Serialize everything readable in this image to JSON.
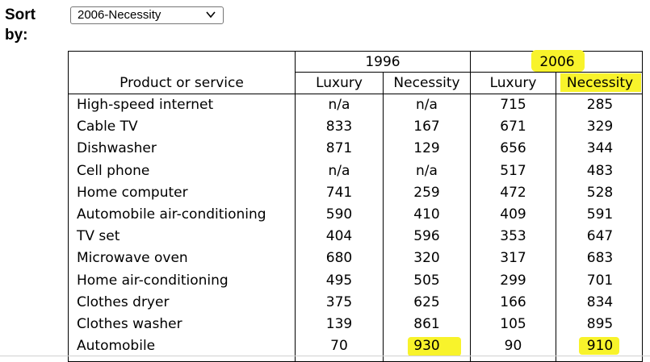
{
  "sort": {
    "label": "Sort by:",
    "selected": "2006-Necessity"
  },
  "table": {
    "years": [
      "1996",
      "2006"
    ],
    "headers": [
      "Product or service",
      "Luxury",
      "Necessity",
      "Luxury",
      "Necessity"
    ],
    "rows": [
      {
        "product": "High-speed internet",
        "lux1996": "n/a",
        "nec1996": "n/a",
        "lux2006": "715",
        "nec2006": "285"
      },
      {
        "product": "Cable TV",
        "lux1996": "833",
        "nec1996": "167",
        "lux2006": "671",
        "nec2006": "329"
      },
      {
        "product": "Dishwasher",
        "lux1996": "871",
        "nec1996": "129",
        "lux2006": "656",
        "nec2006": "344"
      },
      {
        "product": "Cell phone",
        "lux1996": "n/a",
        "nec1996": "n/a",
        "lux2006": "517",
        "nec2006": "483"
      },
      {
        "product": "Home computer",
        "lux1996": "741",
        "nec1996": "259",
        "lux2006": "472",
        "nec2006": "528"
      },
      {
        "product": "Automobile air-conditioning",
        "lux1996": "590",
        "nec1996": "410",
        "lux2006": "409",
        "nec2006": "591"
      },
      {
        "product": "TV set",
        "lux1996": "404",
        "nec1996": "596",
        "lux2006": "353",
        "nec2006": "647"
      },
      {
        "product": "Microwave oven",
        "lux1996": "680",
        "nec1996": "320",
        "lux2006": "317",
        "nec2006": "683"
      },
      {
        "product": "Home air-conditioning",
        "lux1996": "495",
        "nec1996": "505",
        "lux2006": "299",
        "nec2006": "701"
      },
      {
        "product": "Clothes dryer",
        "lux1996": "375",
        "nec1996": "625",
        "lux2006": "166",
        "nec2006": "834"
      },
      {
        "product": "Clothes washer",
        "lux1996": "139",
        "nec1996": "861",
        "lux2006": "105",
        "nec2006": "895"
      },
      {
        "product": "Automobile",
        "lux1996": "70",
        "nec1996": "930",
        "lux2006": "90",
        "nec2006": "910"
      }
    ]
  },
  "colors": {
    "highlight": "#f8f32b"
  }
}
